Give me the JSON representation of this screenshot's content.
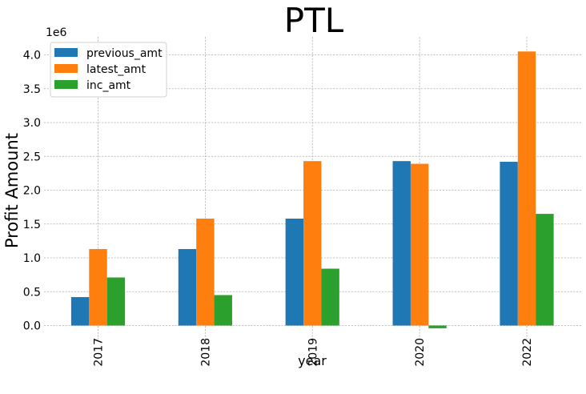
{
  "chart_data": {
    "type": "bar",
    "title": "PTL",
    "xlabel": "year",
    "ylabel": "Profit Amount",
    "y_scale_label": "1e6",
    "categories": [
      "2017",
      "2018",
      "2019",
      "2020",
      "2022"
    ],
    "series": [
      {
        "name": "previous_amt",
        "color": "#1f77b4",
        "values": [
          420000,
          1130000,
          1580000,
          2430000,
          2420000
        ]
      },
      {
        "name": "latest_amt",
        "color": "#ff7f0e",
        "values": [
          1130000,
          1580000,
          2430000,
          2390000,
          4050000
        ]
      },
      {
        "name": "inc_amt",
        "color": "#2ca02c",
        "values": [
          710000,
          450000,
          840000,
          -40000,
          1650000
        ]
      }
    ],
    "yticks": [
      0,
      500000,
      1000000,
      1500000,
      2000000,
      2500000,
      3000000,
      3500000,
      4000000
    ],
    "ytick_labels": [
      "0.0",
      "0.5",
      "1.0",
      "1.5",
      "2.0",
      "2.5",
      "3.0",
      "3.5",
      "4.0"
    ],
    "ylim": [
      -200000,
      4250000
    ],
    "grid": true,
    "legend_position": "top-left"
  }
}
